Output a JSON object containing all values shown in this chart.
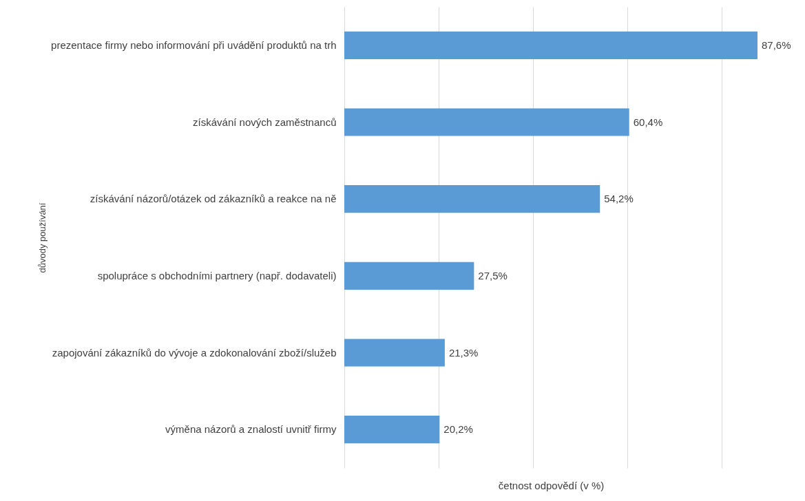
{
  "chart_data": {
    "type": "bar",
    "orientation": "horizontal",
    "categories": [
      "prezentace firmy nebo informování při uvádění produktů na trh",
      "získávání nových zaměstnanců",
      "získávání názorů/otázek od zákazníků a reakce na ně",
      "spolupráce s obchodními partnery (např. dodavateli)",
      "zapojování zákazníků do vývoje a zdokonalování zboží/služeb",
      "výměna názorů a znalostí uvnitř firmy"
    ],
    "values": [
      87.6,
      60.4,
      54.2,
      27.5,
      21.3,
      20.2
    ],
    "value_labels": [
      "87,6%",
      "60,4%",
      "54,2%",
      "27,5%",
      "21,3%",
      "20,2%"
    ],
    "color": "#5b9bd5",
    "xticks": [
      {
        "value": 0,
        "label": null
      },
      {
        "value": 20,
        "label": null
      },
      {
        "value": 40,
        "label": null
      },
      {
        "value": 60,
        "label": null
      },
      {
        "value": 80,
        "label": null
      }
    ],
    "grid": "x",
    "xlabel": "četnost odpovědí (v %)",
    "ylabel": "důvody používání"
  }
}
